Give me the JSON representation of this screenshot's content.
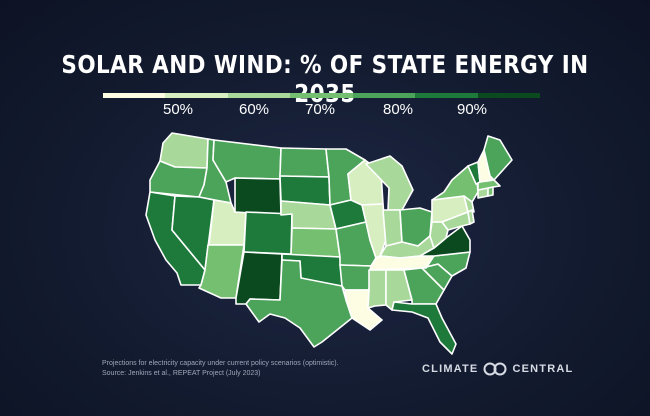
{
  "title": "SOLAR AND WIND: % OF STATE ENERGY IN 2035",
  "legend": {
    "colors": [
      "#fdfde4",
      "#d7efc0",
      "#a9d99a",
      "#74c070",
      "#4ca35a",
      "#1e7a3a",
      "#0a4a1e"
    ],
    "labels": [
      "50%",
      "60%",
      "70%",
      "80%",
      "90%"
    ]
  },
  "footnote": {
    "line1": "Projections for electricity capacity under current policy scenarios (optimistic).",
    "line2": "Source: Jenkins et al., REPEAT Project (July 2023)"
  },
  "logo": {
    "left": "CLIMATE",
    "right": "CENTRAL"
  },
  "map": {
    "classes": {
      "c0": "#fdfde4",
      "c1": "#d7efc0",
      "c2": "#a9d99a",
      "c3": "#74c070",
      "c4": "#4ca35a",
      "c5": "#1e7a3a",
      "c6": "#0a4a1e"
    },
    "states": [
      {
        "abbr": "WA",
        "cls": "c2"
      },
      {
        "abbr": "OR",
        "cls": "c4"
      },
      {
        "abbr": "CA",
        "cls": "c5"
      },
      {
        "abbr": "ID",
        "cls": "c4"
      },
      {
        "abbr": "NV",
        "cls": "c5"
      },
      {
        "abbr": "UT",
        "cls": "c1"
      },
      {
        "abbr": "AZ",
        "cls": "c3"
      },
      {
        "abbr": "MT",
        "cls": "c4"
      },
      {
        "abbr": "WY",
        "cls": "c6"
      },
      {
        "abbr": "CO",
        "cls": "c5"
      },
      {
        "abbr": "NM",
        "cls": "c6"
      },
      {
        "abbr": "ND",
        "cls": "c4"
      },
      {
        "abbr": "SD",
        "cls": "c5"
      },
      {
        "abbr": "NE",
        "cls": "c2"
      },
      {
        "abbr": "KS",
        "cls": "c3"
      },
      {
        "abbr": "OK",
        "cls": "c5"
      },
      {
        "abbr": "TX",
        "cls": "c4"
      },
      {
        "abbr": "MN",
        "cls": "c4"
      },
      {
        "abbr": "IA",
        "cls": "c5"
      },
      {
        "abbr": "MO",
        "cls": "c4"
      },
      {
        "abbr": "AR",
        "cls": "c4"
      },
      {
        "abbr": "LA",
        "cls": "c0"
      },
      {
        "abbr": "WI",
        "cls": "c1"
      },
      {
        "abbr": "IL",
        "cls": "c1"
      },
      {
        "abbr": "MI",
        "cls": "c2"
      },
      {
        "abbr": "IN",
        "cls": "c2"
      },
      {
        "abbr": "OH",
        "cls": "c4"
      },
      {
        "abbr": "KY",
        "cls": "c2"
      },
      {
        "abbr": "TN",
        "cls": "c0"
      },
      {
        "abbr": "MS",
        "cls": "c2"
      },
      {
        "abbr": "AL",
        "cls": "c2"
      },
      {
        "abbr": "GA",
        "cls": "c4"
      },
      {
        "abbr": "FL",
        "cls": "c5"
      },
      {
        "abbr": "SC",
        "cls": "c4"
      },
      {
        "abbr": "NC",
        "cls": "c4"
      },
      {
        "abbr": "VA",
        "cls": "c6"
      },
      {
        "abbr": "WV",
        "cls": "c2"
      },
      {
        "abbr": "PA",
        "cls": "c1"
      },
      {
        "abbr": "NY",
        "cls": "c3"
      },
      {
        "abbr": "MD",
        "cls": "c2"
      },
      {
        "abbr": "DE",
        "cls": "c2"
      },
      {
        "abbr": "NJ",
        "cls": "c2"
      },
      {
        "abbr": "CT",
        "cls": "c2"
      },
      {
        "abbr": "RI",
        "cls": "c3"
      },
      {
        "abbr": "MA",
        "cls": "c3"
      },
      {
        "abbr": "VT",
        "cls": "c5"
      },
      {
        "abbr": "NH",
        "cls": "c0"
      },
      {
        "abbr": "ME",
        "cls": "c4"
      }
    ]
  }
}
